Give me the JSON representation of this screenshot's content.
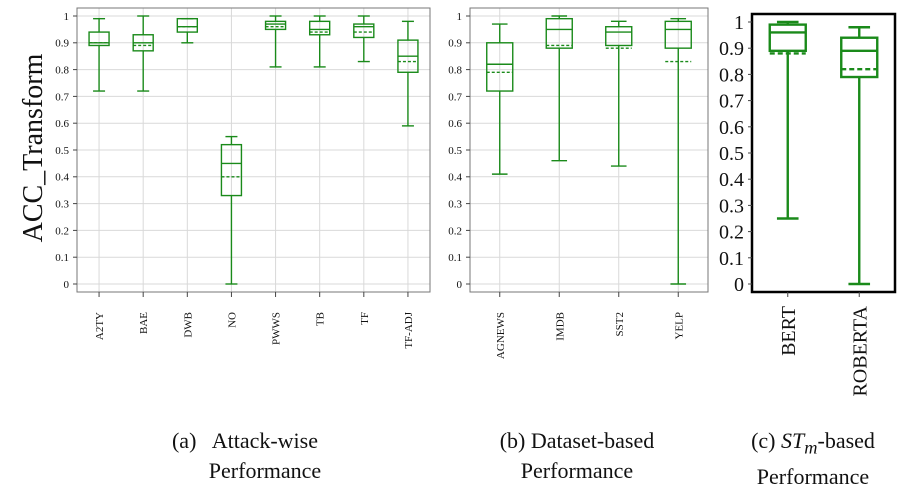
{
  "colors": {
    "box": "#1a8a1a",
    "grid": "#d9d9d9",
    "axis": "#444444",
    "text": "#111111"
  },
  "ylabel": "ACC_Transform",
  "captions": [
    {
      "tag": "(a)",
      "line1": "Attack-wise",
      "line2": "Performance"
    },
    {
      "tag": "(b)",
      "line1": "Dataset-based",
      "line2": "Performance"
    },
    {
      "tag": "(c)",
      "pre": "ST",
      "sub": "m",
      "line1": "-based",
      "line2": "Performance"
    }
  ],
  "chart_data": [
    {
      "type": "box",
      "caption": "(a) Attack-wise Performance",
      "ylim": [
        0,
        1
      ],
      "yticks": [
        0,
        0.1,
        0.2,
        0.3,
        0.4,
        0.5,
        0.6,
        0.7,
        0.8,
        0.9,
        1
      ],
      "grid": true,
      "categories": [
        "A2TY",
        "BAE",
        "DWB",
        "NO",
        "PWWS",
        "TB",
        "TF",
        "TF-ADJ"
      ],
      "boxes": [
        {
          "min": 0.72,
          "q1": 0.89,
          "median": 0.9,
          "mean": 0.9,
          "q3": 0.94,
          "max": 0.99
        },
        {
          "min": 0.72,
          "q1": 0.87,
          "median": 0.9,
          "mean": 0.89,
          "q3": 0.93,
          "max": 1.0
        },
        {
          "min": 0.9,
          "q1": 0.94,
          "median": 0.96,
          "mean": 0.96,
          "q3": 0.99,
          "max": 0.99
        },
        {
          "min": 0.0,
          "q1": 0.33,
          "median": 0.45,
          "mean": 0.4,
          "q3": 0.52,
          "max": 0.55
        },
        {
          "min": 0.81,
          "q1": 0.95,
          "median": 0.97,
          "mean": 0.96,
          "q3": 0.98,
          "max": 1.0
        },
        {
          "min": 0.81,
          "q1": 0.93,
          "median": 0.95,
          "mean": 0.94,
          "q3": 0.98,
          "max": 1.0
        },
        {
          "min": 0.83,
          "q1": 0.92,
          "median": 0.96,
          "mean": 0.94,
          "q3": 0.97,
          "max": 1.0
        },
        {
          "min": 0.59,
          "q1": 0.79,
          "median": 0.85,
          "mean": 0.83,
          "q3": 0.91,
          "max": 0.98
        }
      ]
    },
    {
      "type": "box",
      "caption": "(b) Dataset-based Performance",
      "ylim": [
        0,
        1
      ],
      "yticks": [
        0,
        0.1,
        0.2,
        0.3,
        0.4,
        0.5,
        0.6,
        0.7,
        0.8,
        0.9,
        1
      ],
      "grid": true,
      "categories": [
        "AGNEWS",
        "IMDB",
        "SST2",
        "YELP"
      ],
      "boxes": [
        {
          "min": 0.41,
          "q1": 0.72,
          "median": 0.82,
          "mean": 0.79,
          "q3": 0.9,
          "max": 0.97
        },
        {
          "min": 0.46,
          "q1": 0.88,
          "median": 0.95,
          "mean": 0.89,
          "q3": 0.99,
          "max": 1.0
        },
        {
          "min": 0.44,
          "q1": 0.89,
          "median": 0.94,
          "mean": 0.88,
          "q3": 0.96,
          "max": 0.98
        },
        {
          "min": 0.0,
          "q1": 0.88,
          "median": 0.95,
          "mean": 0.83,
          "q3": 0.98,
          "max": 0.99
        }
      ]
    },
    {
      "type": "box",
      "caption": "(c) STm-based Performance",
      "ylim": [
        0,
        1
      ],
      "yticks": [
        0,
        0.1,
        0.2,
        0.3,
        0.4,
        0.5,
        0.6,
        0.7,
        0.8,
        0.9,
        1
      ],
      "grid": false,
      "categories": [
        "BERT",
        "ROBERTA"
      ],
      "boxes": [
        {
          "min": 0.25,
          "q1": 0.89,
          "median": 0.96,
          "mean": 0.88,
          "q3": 0.99,
          "max": 1.0
        },
        {
          "min": 0.0,
          "q1": 0.79,
          "median": 0.89,
          "mean": 0.82,
          "q3": 0.94,
          "max": 0.98
        }
      ]
    }
  ]
}
